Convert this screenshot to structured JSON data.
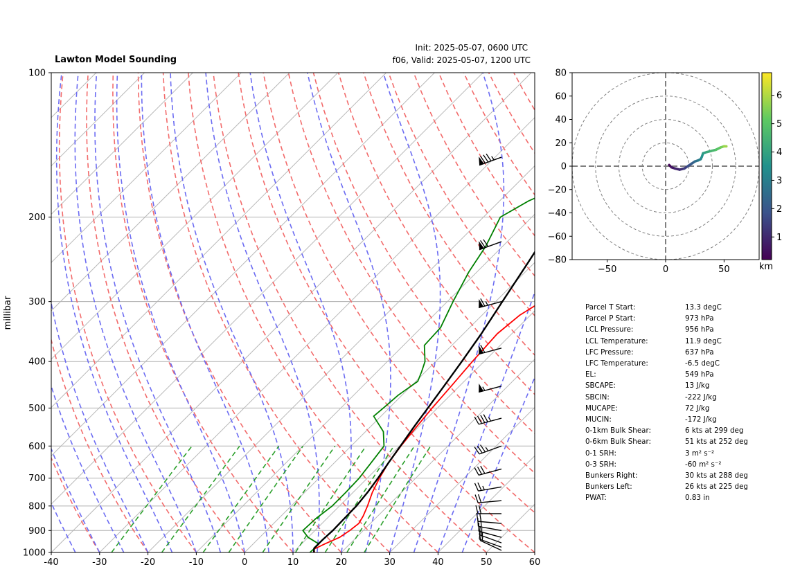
{
  "header": {
    "title": "Lawton Model Sounding",
    "init": "Init: 2025-05-07, 0600 UTC",
    "valid": "f06, Valid: 2025-05-07, 1200 UTC"
  },
  "colors": {
    "temperature": "#ff0000",
    "dewpoint": "#008000",
    "parcel": "#000000",
    "dry_adiabat": "#f26b6b",
    "moist_adiabat": "#6c6cf2",
    "mixing_ratio": "#2ca02c",
    "isotherm": "#a0a0a0"
  },
  "chart_data": [
    {
      "type": "line",
      "chart_kind": "skew-T log-p diagram",
      "ylabel": "millibar",
      "xlim": [
        -40,
        60
      ],
      "ylim": [
        1000,
        100
      ],
      "y_scale": "log",
      "x_ticks": [
        "-40",
        "-30",
        "-20",
        "-10",
        "0",
        "10",
        "20",
        "30",
        "40",
        "50",
        "60"
      ],
      "y_ticks": [
        "100",
        "200",
        "300",
        "400",
        "500",
        "600",
        "700",
        "800",
        "900",
        "1000"
      ],
      "grid": true,
      "series": [
        {
          "role": "temperature",
          "points": [
            [
              1000,
              14.5
            ],
            [
              985,
              13.6
            ],
            [
              960,
              14.8
            ],
            [
              930,
              16.5
            ],
            [
              900,
              17.2
            ],
            [
              870,
              17.6
            ],
            [
              840,
              17.0
            ],
            [
              800,
              15.8
            ],
            [
              750,
              14.0
            ],
            [
              700,
              12.5
            ],
            [
              650,
              11.2
            ],
            [
              600,
              10.3
            ],
            [
              550,
              9.6
            ],
            [
              500,
              8.9
            ],
            [
              450,
              8.3
            ],
            [
              400,
              7.6
            ],
            [
              350,
              7.0
            ],
            [
              320,
              7.8
            ],
            [
              300,
              9.5
            ],
            [
              260,
              14.5
            ],
            [
              230,
              18.0
            ],
            [
              200,
              20.5
            ],
            [
              180,
              23.3
            ],
            [
              160,
              27.5
            ],
            [
              150,
              29.5
            ],
            [
              130,
              34.5
            ],
            [
              110,
              39.7
            ],
            [
              100,
              42.0
            ]
          ]
        },
        {
          "role": "dewpoint",
          "points": [
            [
              1000,
              13.5
            ],
            [
              980,
              13.6
            ],
            [
              960,
              13.6
            ],
            [
              930,
              10.0
            ],
            [
              900,
              7.5
            ],
            [
              880,
              7.6
            ],
            [
              850,
              7.7
            ],
            [
              800,
              8.5
            ],
            [
              750,
              8.5
            ],
            [
              700,
              8.3
            ],
            [
              650,
              7.6
            ],
            [
              600,
              6.8
            ],
            [
              560,
              3.7
            ],
            [
              520,
              -1.5
            ],
            [
              500,
              -1.2
            ],
            [
              470,
              -0.8
            ],
            [
              440,
              0.4
            ],
            [
              420,
              -0.8
            ],
            [
              400,
              -2.2
            ],
            [
              370,
              -5.7
            ],
            [
              340,
              -6.0
            ],
            [
              300,
              -8.8
            ],
            [
              260,
              -11.7
            ],
            [
              230,
              -13.5
            ],
            [
              200,
              -16.5
            ],
            [
              185,
              -14.0
            ],
            [
              170,
              -9.5
            ],
            [
              150,
              -6.7
            ],
            [
              130,
              -2.0
            ],
            [
              115,
              2.6
            ],
            [
              100,
              8.2
            ]
          ]
        },
        {
          "role": "parcel",
          "points": [
            [
              1000,
              14.3
            ],
            [
              980,
              13.5
            ],
            [
              960,
              13.5
            ],
            [
              940,
              13.5
            ],
            [
              900,
              13.7
            ],
            [
              850,
              13.6
            ],
            [
              800,
              13.5
            ],
            [
              750,
              13.0
            ],
            [
              700,
              12.2
            ],
            [
              650,
              11.2
            ],
            [
              600,
              10.2
            ],
            [
              550,
              9.1
            ],
            [
              500,
              8.0
            ],
            [
              450,
              6.8
            ],
            [
              400,
              5.4
            ],
            [
              350,
              3.7
            ],
            [
              300,
              1.4
            ],
            [
              250,
              -1.3
            ],
            [
              200,
              -4.7
            ],
            [
              180,
              -6.2
            ],
            [
              150,
              -8.2
            ],
            [
              130,
              -9.6
            ],
            [
              110,
              -11.2
            ],
            [
              100,
              -12.0
            ]
          ]
        }
      ]
    },
    {
      "type": "line",
      "chart_kind": "hodograph",
      "xlim": [
        -80,
        80
      ],
      "ylim": [
        -80,
        80
      ],
      "x_ticks": [
        "−50",
        "0",
        "50"
      ],
      "y_ticks": [
        "80",
        "60",
        "40",
        "20",
        "0",
        "−20",
        "−40",
        "−60",
        "−80"
      ],
      "colorbar_label": "km",
      "colorbar_ticks": [
        "1",
        "2",
        "3",
        "4",
        "5",
        "6"
      ],
      "points": [
        [
          3,
          1,
          0.2
        ],
        [
          5,
          -1,
          0.5
        ],
        [
          8,
          -2,
          0.8
        ],
        [
          12,
          -3,
          1.0
        ],
        [
          16,
          -2,
          1.3
        ],
        [
          19,
          0,
          1.6
        ],
        [
          22,
          2,
          2.0
        ],
        [
          25,
          4,
          2.4
        ],
        [
          28,
          5,
          2.8
        ],
        [
          30,
          6,
          3.1
        ],
        [
          31,
          8,
          3.4
        ],
        [
          32,
          11,
          3.7
        ],
        [
          35,
          12,
          4.0
        ],
        [
          39,
          13,
          4.4
        ],
        [
          43,
          14,
          4.8
        ],
        [
          47,
          16,
          5.2
        ],
        [
          50,
          17,
          5.6
        ],
        [
          52,
          17,
          6.0
        ]
      ]
    }
  ],
  "params": [
    {
      "label": "Parcel T Start:",
      "value": "13.3 degC"
    },
    {
      "label": "Parcel P Start:",
      "value": "973 hPa"
    },
    {
      "label": "LCL Pressure:",
      "value": "956 hPa"
    },
    {
      "label": "LCL Temperature:",
      "value": "11.9 degC"
    },
    {
      "label": "LFC Pressure:",
      "value": "637 hPa"
    },
    {
      "label": "LFC Temperature:",
      "value": "-6.5 degC"
    },
    {
      "label": "EL:",
      "value": "549 hPa"
    },
    {
      "label": "SBCAPE:",
      "value": "13 J/kg"
    },
    {
      "label": "SBCIN:",
      "value": "-222 J/kg"
    },
    {
      "label": "MUCAPE:",
      "value": "72 J/kg"
    },
    {
      "label": "MUCIN:",
      "value": "-172 J/kg"
    },
    {
      "label": "0-1km Bulk Shear:",
      "value": "6 kts at 299 deg"
    },
    {
      "label": "0-6km Bulk Shear:",
      "value": "51 kts at 252 deg"
    },
    {
      "label": "0-1 SRH:",
      "value": "3 m² s⁻²"
    },
    {
      "label": "0-3 SRH:",
      "value": "-60 m² s⁻²"
    },
    {
      "label": "Bunkers Right:",
      "value": "30 kts at 288 deg"
    },
    {
      "label": "Bunkers Left:",
      "value": "26 kts at 225 deg"
    },
    {
      "label": "PWAT:",
      "value": "0.83 in"
    }
  ],
  "wind_barbs": [
    {
      "p": 150,
      "dir": 250,
      "spd": 85
    },
    {
      "p": 225,
      "dir": 250,
      "spd": 70
    },
    {
      "p": 300,
      "dir": 255,
      "spd": 65
    },
    {
      "p": 375,
      "dir": 255,
      "spd": 60
    },
    {
      "p": 450,
      "dir": 255,
      "spd": 55
    },
    {
      "p": 525,
      "dir": 255,
      "spd": 45
    },
    {
      "p": 600,
      "dir": 250,
      "spd": 35
    },
    {
      "p": 670,
      "dir": 255,
      "spd": 30
    },
    {
      "p": 730,
      "dir": 260,
      "spd": 25
    },
    {
      "p": 780,
      "dir": 265,
      "spd": 20
    },
    {
      "p": 830,
      "dir": 270,
      "spd": 20
    },
    {
      "p": 870,
      "dir": 275,
      "spd": 20
    },
    {
      "p": 900,
      "dir": 280,
      "spd": 20
    },
    {
      "p": 930,
      "dir": 285,
      "spd": 15
    },
    {
      "p": 955,
      "dir": 290,
      "spd": 15
    },
    {
      "p": 975,
      "dir": 290,
      "spd": 15
    },
    {
      "p": 990,
      "dir": 295,
      "spd": 10
    }
  ]
}
